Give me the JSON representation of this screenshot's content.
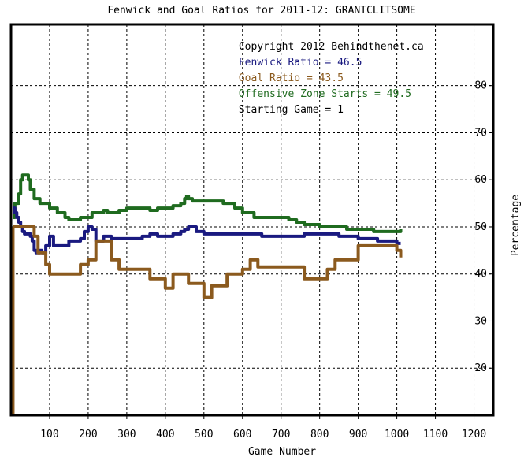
{
  "chart_data": {
    "type": "line",
    "title": "Fenwick and Goal Ratios for 2011-12: GRANTCLITSOME",
    "xlabel": "Game Number",
    "ylabel": "Percentage",
    "xlim": [
      0,
      1250
    ],
    "ylim": [
      10,
      93
    ],
    "xticks": [
      100,
      200,
      300,
      400,
      500,
      600,
      700,
      800,
      900,
      1000,
      1100,
      1200
    ],
    "yticks": [
      20,
      30,
      40,
      50,
      60,
      70,
      80
    ],
    "grid": true,
    "legend_position": "top-right",
    "annotations": [
      {
        "text": "Copyright 2012 Behindthenet.ca",
        "color": "#000000"
      },
      {
        "text": "Fenwick Ratio = 46.5",
        "color": "#1a1a80"
      },
      {
        "text": "Goal Ratio = 43.5",
        "color": "#8b5a1e"
      },
      {
        "text": "Offensive Zone Starts = 49.5",
        "color": "#1f6b1f"
      },
      {
        "text": "Starting Game = 1",
        "color": "#000000"
      }
    ],
    "series": [
      {
        "name": "Offensive Zone Starts",
        "color": "#1f6b1f",
        "x": [
          5,
          10,
          15,
          20,
          25,
          30,
          35,
          40,
          45,
          50,
          60,
          65,
          70,
          75,
          80,
          90,
          100,
          120,
          140,
          150,
          160,
          180,
          200,
          210,
          220,
          240,
          250,
          280,
          300,
          340,
          360,
          380,
          400,
          420,
          440,
          450,
          455,
          460,
          470,
          500,
          550,
          580,
          600,
          630,
          660,
          700,
          720,
          740,
          750,
          760,
          780,
          800,
          830,
          850,
          870,
          900,
          940,
          970,
          1000,
          1010
        ],
        "values": [
          52,
          55,
          55,
          57,
          60,
          61,
          61,
          61,
          60,
          58,
          56,
          56,
          56,
          55,
          55,
          55,
          54,
          53,
          52,
          51.5,
          51.5,
          52,
          52,
          53,
          53,
          53.5,
          53,
          53.5,
          54,
          54,
          53.5,
          54,
          54,
          54.5,
          55,
          56,
          56.5,
          56,
          55.5,
          55.5,
          55,
          54,
          53,
          52,
          52,
          52,
          51.5,
          51,
          51,
          50.5,
          50.5,
          50,
          50,
          50,
          49.5,
          49.5,
          49,
          49,
          49,
          49.5
        ]
      },
      {
        "name": "Fenwick Ratio",
        "color": "#1a1a80",
        "x": [
          5,
          10,
          15,
          20,
          25,
          30,
          35,
          40,
          45,
          50,
          55,
          60,
          65,
          70,
          75,
          80,
          90,
          100,
          110,
          120,
          140,
          150,
          160,
          180,
          190,
          200,
          210,
          220,
          240,
          260,
          280,
          300,
          340,
          360,
          380,
          400,
          420,
          440,
          450,
          460,
          480,
          500,
          520,
          560,
          600,
          650,
          700,
          730,
          760,
          800,
          850,
          900,
          950,
          990,
          1000,
          1010
        ],
        "values": [
          54,
          53,
          52,
          51,
          50,
          49,
          48.5,
          48.5,
          48.5,
          48,
          47,
          45,
          44.5,
          44.5,
          45,
          44.5,
          46,
          48,
          46,
          46,
          46,
          47,
          47,
          47.5,
          49,
          50,
          49.5,
          47,
          48,
          47.5,
          47.5,
          47.5,
          48,
          48.5,
          48,
          48,
          48.5,
          49,
          49.5,
          50,
          49,
          48.5,
          48.5,
          48.5,
          48.5,
          48,
          48,
          48,
          48.5,
          48.5,
          48,
          47.5,
          47,
          47,
          46.5,
          46.5
        ]
      },
      {
        "name": "Goal Ratio",
        "color": "#8b5a1e",
        "x": [
          5,
          10,
          20,
          40,
          50,
          60,
          70,
          80,
          90,
          100,
          120,
          140,
          160,
          180,
          200,
          220,
          240,
          260,
          280,
          300,
          340,
          360,
          380,
          400,
          420,
          440,
          460,
          480,
          500,
          520,
          560,
          600,
          620,
          640,
          660,
          700,
          740,
          760,
          800,
          820,
          840,
          860,
          880,
          900,
          940,
          980,
          1000,
          1010
        ],
        "values": [
          50,
          50,
          50,
          50,
          50,
          48,
          44.5,
          44.5,
          42,
          40,
          40,
          40,
          40,
          42,
          43,
          47,
          47,
          43,
          41,
          41,
          41,
          39,
          39,
          37,
          40,
          40,
          38,
          38,
          35,
          37.5,
          40,
          41,
          43,
          41.5,
          41.5,
          41.5,
          41.5,
          39,
          39,
          41,
          43,
          43,
          43,
          46,
          46,
          46,
          45,
          43.5
        ]
      }
    ]
  }
}
